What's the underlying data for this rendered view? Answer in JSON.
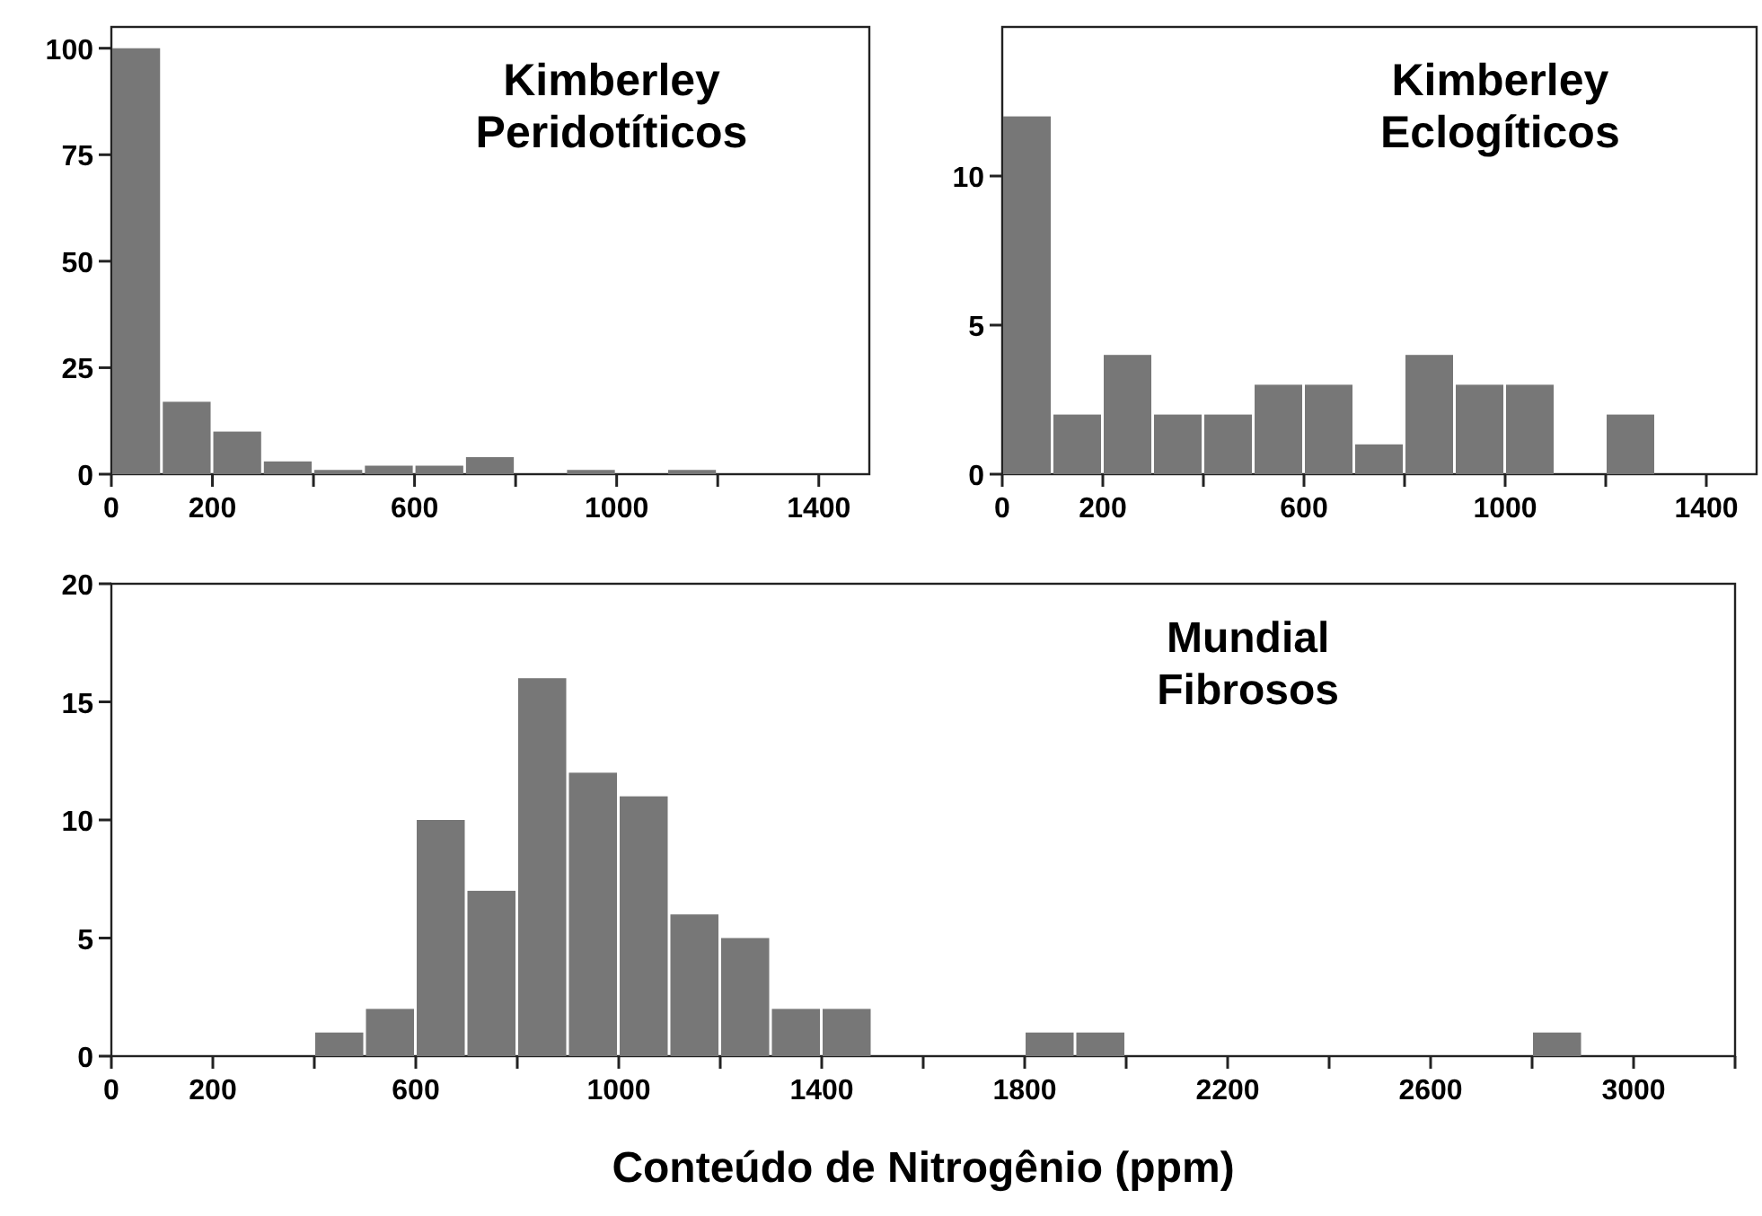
{
  "chart_data": [
    {
      "type": "histogram",
      "title": "Kimberley\nPeridotíticos",
      "bins": [
        0,
        100,
        200,
        300,
        400,
        500,
        600,
        700,
        800,
        900,
        1000,
        1100,
        1200,
        1300,
        1400,
        1500
      ],
      "values": [
        100,
        17,
        10,
        3,
        1,
        2,
        2,
        4,
        0,
        1,
        0,
        1,
        0,
        0,
        0
      ],
      "color": "#777777",
      "xlim": [
        0,
        1500
      ],
      "ylim": [
        0,
        105
      ],
      "xticks": [
        0,
        200,
        {
          "value": 400,
          "label": null
        },
        600,
        {
          "value": 800,
          "label": null
        },
        1000,
        {
          "value": 1200,
          "label": null
        },
        1400
      ],
      "yticks": [
        0,
        25,
        50,
        75,
        100
      ]
    },
    {
      "type": "histogram",
      "title": "Kimberley\nEclogíticos",
      "bins": [
        0,
        100,
        200,
        300,
        400,
        500,
        600,
        700,
        800,
        900,
        1000,
        1100,
        1200,
        1300,
        1400,
        1500
      ],
      "values": [
        12,
        2,
        4,
        2,
        2,
        3,
        3,
        1,
        4,
        3,
        3,
        0,
        2,
        0,
        0
      ],
      "color": "#777777",
      "xlim": [
        0,
        1500
      ],
      "ylim": [
        0,
        15
      ],
      "xticks": [
        0,
        200,
        {
          "value": 400,
          "label": null
        },
        600,
        {
          "value": 800,
          "label": null
        },
        1000,
        {
          "value": 1200,
          "label": null
        },
        1400
      ],
      "yticks": [
        0,
        5,
        10
      ]
    },
    {
      "type": "histogram",
      "title": "Mundial\nFibrosos",
      "xlabel": "Conteúdo de Nitrogênio (ppm)",
      "bins": [
        0,
        100,
        200,
        300,
        400,
        500,
        600,
        700,
        800,
        900,
        1000,
        1100,
        1200,
        1300,
        1400,
        1500,
        1600,
        1700,
        1800,
        1900,
        2000,
        2100,
        2200,
        2300,
        2400,
        2500,
        2600,
        2700,
        2800,
        2900,
        3000,
        3100,
        3200
      ],
      "values": [
        0,
        0,
        0,
        0,
        1,
        2,
        10,
        7,
        16,
        12,
        11,
        6,
        5,
        2,
        2,
        0,
        0,
        0,
        1,
        1,
        0,
        0,
        0,
        0,
        0,
        0,
        0,
        0,
        1,
        0,
        0,
        0
      ],
      "color": "#777777",
      "xlim": [
        0,
        3200
      ],
      "ylim": [
        0,
        20
      ],
      "xticks": [
        0,
        200,
        {
          "value": 400,
          "label": null
        },
        600,
        {
          "value": 800,
          "label": null
        },
        1000,
        {
          "value": 1200,
          "label": null
        },
        1400,
        {
          "value": 1600,
          "label": null
        },
        1800,
        {
          "value": 2000,
          "label": null
        },
        2200,
        {
          "value": 2400,
          "label": null
        },
        2600,
        {
          "value": 2800,
          "label": null
        },
        3000,
        {
          "value": 3200,
          "label": null
        }
      ],
      "yticks": [
        0,
        5,
        10,
        15,
        20
      ]
    }
  ]
}
